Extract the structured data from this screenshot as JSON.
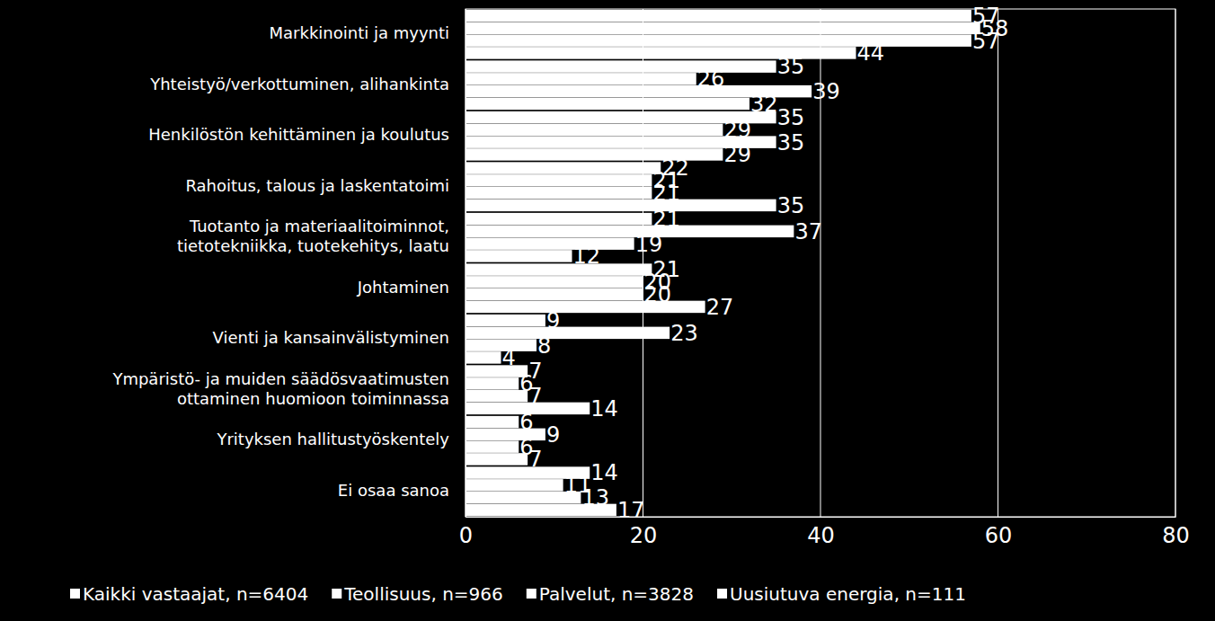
{
  "chart_data": {
    "type": "bar",
    "orientation": "horizontal",
    "categories": [
      "Markkinointi ja myynti",
      "Yhteistyö/verkottuminen, alihankinta",
      "Henkilöstön kehittäminen ja koulutus",
      "Rahoitus, talous ja laskentatoimi",
      "Tuotanto ja materiaalitoiminnot,\ntietotekniikka, tuotekehitys, laatu",
      "Johtaminen",
      "Vienti ja kansainvälistyminen",
      "Ympäristö- ja muiden säädösvaatimusten\nottaminen huomioon toiminnassa",
      "Yrityksen hallitustyöskentely",
      "Ei osaa sanoa"
    ],
    "series": [
      {
        "name": "Kaikki vastaajat, n=6404",
        "color": "#ffffff",
        "values": [
          57,
          35,
          35,
          22,
          21,
          21,
          9,
          7,
          6,
          14
        ]
      },
      {
        "name": "Teollisuus, n=966",
        "color": "#ffffff",
        "values": [
          58,
          26,
          29,
          21,
          37,
          20,
          23,
          6,
          9,
          11
        ]
      },
      {
        "name": "Palvelut, n=3828",
        "color": "#ffffff",
        "values": [
          57,
          39,
          35,
          21,
          19,
          20,
          8,
          7,
          6,
          13
        ]
      },
      {
        "name": "Uusiutuva energia, n=111",
        "color": "#ffffff",
        "values": [
          44,
          32,
          29,
          35,
          12,
          27,
          4,
          14,
          7,
          17
        ]
      }
    ],
    "xlim": [
      0,
      80
    ],
    "xticks": [
      0,
      20,
      40,
      60,
      80
    ],
    "grid": true,
    "legend": "bottom",
    "data_labels": true
  }
}
